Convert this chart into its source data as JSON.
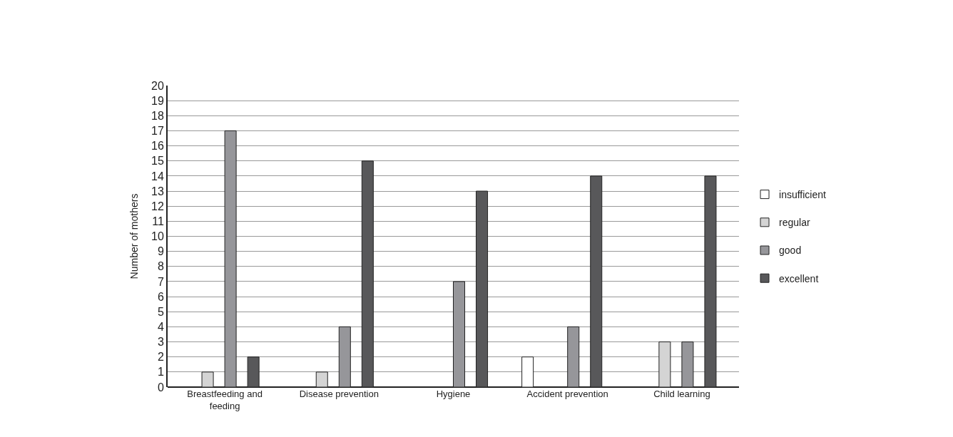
{
  "chart_data": {
    "type": "bar",
    "ylabel": "Number of mothers",
    "categories": [
      "Breastfeeding and feeding",
      "Disease prevention",
      "Hygiene",
      "Accident prevention",
      "Child learning"
    ],
    "series": [
      {
        "name": "insufficient",
        "color": "#ffffff",
        "values": [
          0,
          0,
          0,
          2,
          0
        ]
      },
      {
        "name": "regular",
        "color": "#d4d4d4",
        "values": [
          1,
          1,
          0,
          0,
          3
        ]
      },
      {
        "name": "good",
        "color": "#96969a",
        "values": [
          17,
          4,
          7,
          4,
          3
        ]
      },
      {
        "name": "excellent",
        "color": "#58585a",
        "values": [
          2,
          15,
          13,
          14,
          14
        ]
      }
    ],
    "ylim": [
      0,
      20
    ],
    "yticks": [
      0,
      1,
      2,
      3,
      4,
      5,
      6,
      7,
      8,
      9,
      10,
      11,
      12,
      13,
      14,
      15,
      16,
      17,
      18,
      19,
      20
    ],
    "grid": "y",
    "legend": "right"
  }
}
